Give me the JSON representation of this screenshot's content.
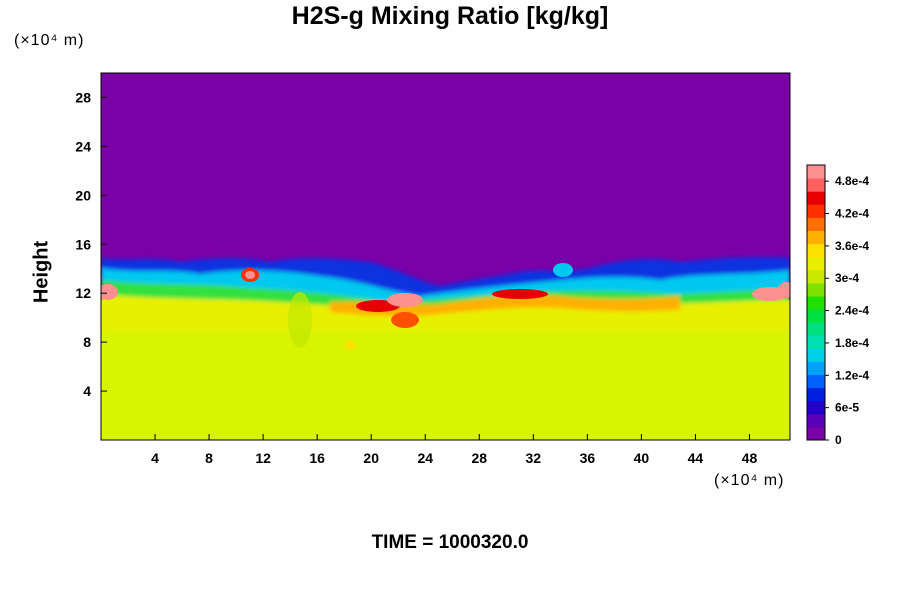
{
  "chart_data": {
    "type": "heatmap",
    "title": "H2S-g Mixing Ratio [kg/kg]",
    "xlabel": "",
    "ylabel": "Height",
    "x_unit": "(×10⁴ m)",
    "y_unit": "(×10⁴ m)",
    "xlim": [
      0,
      51
    ],
    "ylim": [
      0,
      30
    ],
    "x_ticks": [
      "4",
      "8",
      "12",
      "16",
      "20",
      "24",
      "28",
      "32",
      "36",
      "40",
      "44",
      "48"
    ],
    "y_ticks": [
      "4",
      "8",
      "12",
      "16",
      "20",
      "24",
      "28"
    ],
    "colorbar": {
      "min": 0,
      "max": 0.00051,
      "tick_labels": [
        "0",
        "6e-5",
        "1.2e-4",
        "1.8e-4",
        "2.4e-4",
        "3e-4",
        "3.6e-4",
        "4.2e-4",
        "4.8e-4"
      ],
      "colors": [
        "#7a00a8",
        "#5a00b8",
        "#2200c8",
        "#0020e0",
        "#0060ff",
        "#00a0ff",
        "#00d0e8",
        "#00e0b0",
        "#00e080",
        "#00e040",
        "#20e000",
        "#80e000",
        "#c8e800",
        "#e8f000",
        "#ffe000",
        "#ffb000",
        "#ff7000",
        "#ff3000",
        "#e80000",
        "#ff6060",
        "#ff9090"
      ]
    },
    "fields": {
      "upper_region_value": 0,
      "lower_region_value": 0.00035,
      "mixing_layer_height_range": [
        10,
        15
      ],
      "peak_value": 0.0005,
      "notes": "Lower atmosphere (0 to ~11) near uniform ~3.5e-4; upper region (>~15) ~0; turbulent mixing layer between ~10 and ~15 with local maxima near x≈1, 10, 20, 22, 32, 49."
    }
  },
  "footer": {
    "time_label": "TIME = 1000320.0"
  }
}
